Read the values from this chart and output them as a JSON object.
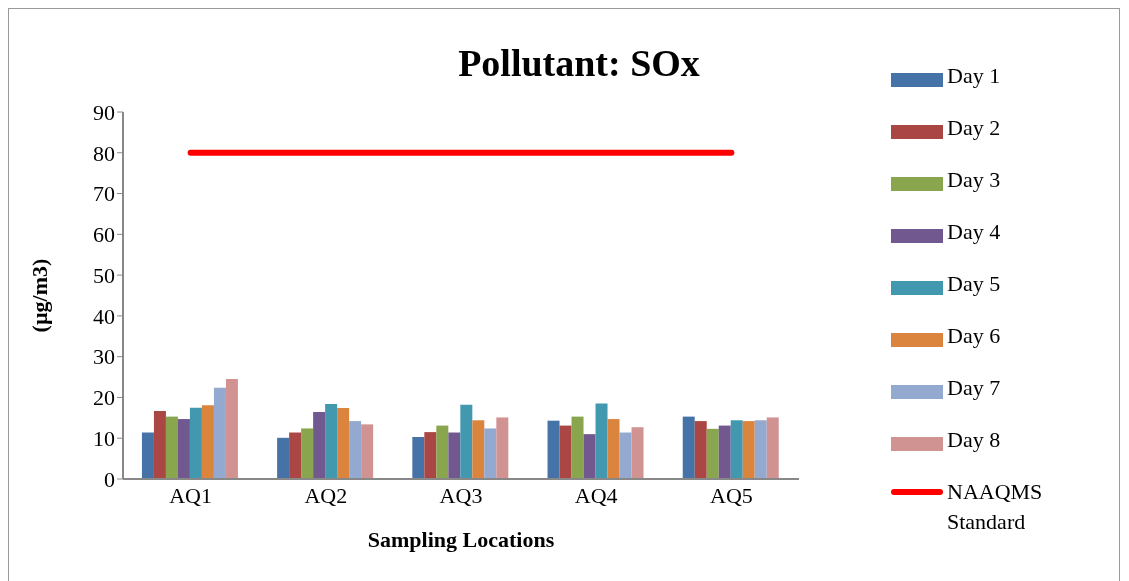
{
  "chart_data": {
    "type": "bar",
    "title": "Pollutant: SOx",
    "xlabel": "Sampling Locations",
    "ylabel": "(µg/m3)",
    "categories": [
      "AQ1",
      "AQ2",
      "AQ3",
      "AQ4",
      "AQ5"
    ],
    "series": [
      {
        "name": "Day 1",
        "color": "#4572a7",
        "values": [
          11.4,
          10.1,
          10.3,
          14.3,
          15.3
        ]
      },
      {
        "name": "Day 2",
        "color": "#aa4643",
        "values": [
          16.7,
          11.4,
          11.5,
          13.1,
          14.2
        ]
      },
      {
        "name": "Day 3",
        "color": "#89a54e",
        "values": [
          15.3,
          12.4,
          13.1,
          15.3,
          12.3
        ]
      },
      {
        "name": "Day 4",
        "color": "#71588f",
        "values": [
          14.7,
          16.4,
          11.4,
          11.0,
          13.1
        ]
      },
      {
        "name": "Day 5",
        "color": "#4198af",
        "values": [
          17.5,
          18.4,
          18.2,
          18.5,
          14.4
        ]
      },
      {
        "name": "Day 6",
        "color": "#db843d",
        "values": [
          18.1,
          17.4,
          14.4,
          14.7,
          14.2
        ]
      },
      {
        "name": "Day 7",
        "color": "#93a9cf",
        "values": [
          22.4,
          14.2,
          12.4,
          11.4,
          14.4
        ]
      },
      {
        "name": "Day 8",
        "color": "#d19392",
        "values": [
          24.5,
          13.4,
          15.1,
          12.7,
          15.1
        ]
      },
      {
        "name": "NAAQMS Standard",
        "type": "line",
        "color": "#ff0000",
        "values": [
          80,
          80,
          80,
          80,
          80
        ]
      }
    ],
    "ylim": [
      0,
      90
    ],
    "yticks": [
      0,
      10,
      20,
      30,
      40,
      50,
      60,
      70,
      80,
      90
    ],
    "grid": false,
    "legend": "right"
  }
}
